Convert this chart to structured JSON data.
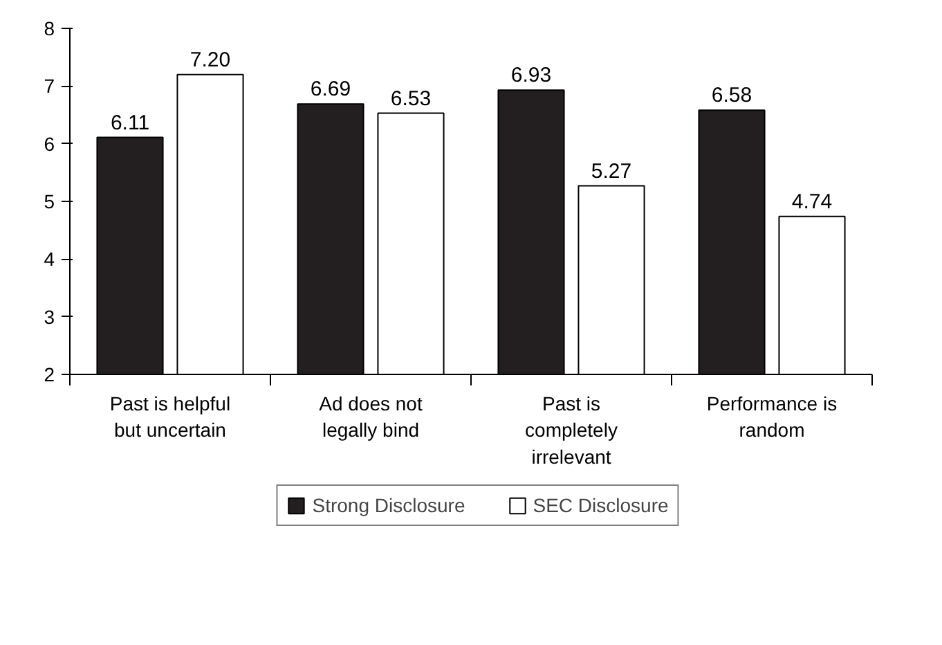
{
  "chart_data": {
    "type": "bar",
    "categories": [
      "Past is helpful but uncertain",
      "Ad does not legally bind",
      "Past is completely irrelevant",
      "Performance is random"
    ],
    "series": [
      {
        "name": "Strong Disclosure",
        "color": "#231f20",
        "values": [
          6.11,
          6.69,
          6.93,
          6.58
        ],
        "value_labels": [
          "6.11",
          "6.69",
          "6.93",
          "6.58"
        ]
      },
      {
        "name": "SEC Disclosure",
        "color": "#ffffff",
        "values": [
          7.2,
          6.53,
          5.27,
          4.74
        ],
        "value_labels": [
          "7.20",
          "6.53",
          "5.27",
          "4.74"
        ]
      }
    ],
    "ylim": [
      2,
      8
    ],
    "yticks": [
      2,
      3,
      4,
      5,
      6,
      7,
      8
    ],
    "grid": false,
    "legend": "bottom"
  }
}
